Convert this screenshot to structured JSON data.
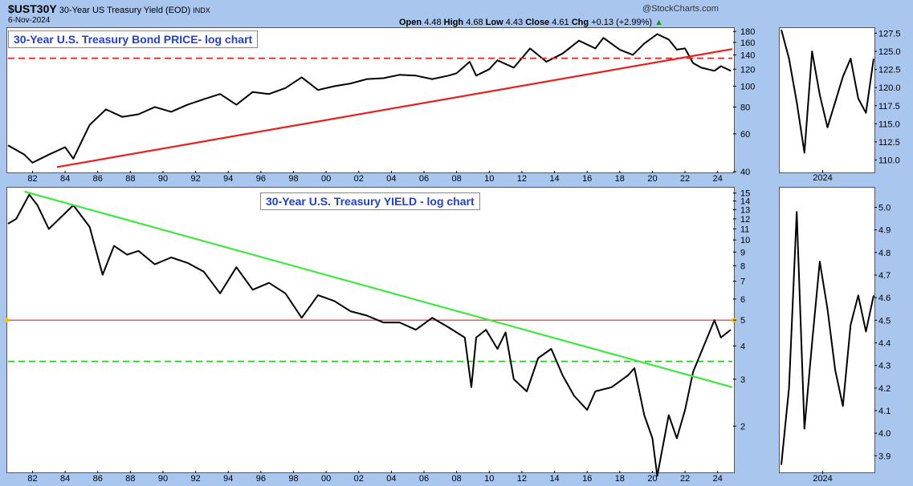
{
  "header": {
    "symbol": "$UST30Y",
    "name": "30-Year US Treasury Yield (EOD)",
    "exchange": "INDX",
    "date": "6-Nov-2024",
    "source": "@StockCharts.com",
    "ohlc": {
      "open_label": "Open",
      "open": "4.48",
      "high_label": "High",
      "high": "4.68",
      "low_label": "Low",
      "low": "4.43",
      "close_label": "Close",
      "close": "4.61",
      "chg_label": "Chg",
      "chg": "+0.13 (+2.99%)"
    }
  },
  "colors": {
    "price": "#000000",
    "price_trend": "#e8201e",
    "price_ref": "#e8201e",
    "yield_trend": "#3ee83e",
    "yield_ref_solid": "#e8201e",
    "yield_ref_dash": "#22cc22",
    "background": "#a9c6ef"
  },
  "chart_data": [
    {
      "type": "line",
      "title": "30-Year U.S. Treasury Bond PRICE- log chart",
      "yscale": "log",
      "ylim": [
        40,
        185
      ],
      "xlim": [
        1980.5,
        2024.9
      ],
      "yticks": [
        40,
        60,
        80,
        100,
        120,
        140,
        160,
        180
      ],
      "xtick_labels": [
        "82",
        "84",
        "86",
        "88",
        "90",
        "92",
        "94",
        "96",
        "98",
        "00",
        "02",
        "04",
        "06",
        "08",
        "10",
        "12",
        "14",
        "16",
        "18",
        "20",
        "22",
        "24"
      ],
      "series": [
        {
          "x": [
            1980.5,
            1981.5,
            1982.0,
            1983.0,
            1984.0,
            1984.5,
            1985.5,
            1986.5,
            1987.5,
            1988.5,
            1989.5,
            1990.5,
            1991.5,
            1992.5,
            1993.5,
            1994.5,
            1995.5,
            1996.5,
            1997.5,
            1998.5,
            1999.5,
            2000.5,
            2001.5,
            2002.5,
            2003.5,
            2004.5,
            2005.5,
            2006.5,
            2007.5,
            2008.0,
            2008.8,
            2009.2,
            2010.0,
            2010.5,
            2011.5,
            2012.5,
            2013.5,
            2014.5,
            2015.5,
            2016.5,
            2017.0,
            2018.0,
            2018.8,
            2019.5,
            2020.3,
            2021.0,
            2021.5,
            2022.0,
            2022.5,
            2023.0,
            2023.8,
            2024.2,
            2024.8
          ],
          "values": [
            53,
            48,
            44,
            48,
            52,
            46,
            66,
            78,
            72,
            74,
            80,
            76,
            82,
            87,
            92,
            82,
            94,
            92,
            98,
            110,
            96,
            100,
            103,
            108,
            109,
            113,
            112,
            108,
            112,
            115,
            130,
            112,
            120,
            132,
            122,
            150,
            130,
            142,
            163,
            150,
            168,
            148,
            140,
            158,
            175,
            165,
            148,
            150,
            128,
            122,
            118,
            124,
            118
          ]
        }
      ],
      "trendline": {
        "x": [
          1983.5,
          2024.9
        ],
        "values": [
          42,
          149
        ]
      },
      "ref_line": {
        "value": 135,
        "style": "dashed"
      }
    },
    {
      "type": "line",
      "title": "30-Year U.S. Treasury YIELD - log chart",
      "yscale": "log",
      "ylim": [
        1.35,
        15.5
      ],
      "xlim": [
        1980.5,
        2024.9
      ],
      "yticks": [
        2,
        3,
        4,
        5,
        6,
        7,
        8,
        9,
        10,
        11,
        12,
        13,
        14,
        15
      ],
      "xtick_labels": [
        "82",
        "84",
        "86",
        "88",
        "90",
        "92",
        "94",
        "96",
        "98",
        "00",
        "02",
        "04",
        "06",
        "08",
        "10",
        "12",
        "14",
        "16",
        "18",
        "20",
        "22",
        "24"
      ],
      "series": [
        {
          "x": [
            1980.5,
            1981.0,
            1981.8,
            1982.3,
            1983.0,
            1984.5,
            1985.5,
            1986.3,
            1987.0,
            1987.8,
            1988.5,
            1989.5,
            1990.5,
            1991.5,
            1992.5,
            1993.5,
            1994.5,
            1995.5,
            1996.5,
            1997.5,
            1998.5,
            1999.5,
            2000.5,
            2001.5,
            2002.5,
            2003.5,
            2004.5,
            2005.5,
            2006.5,
            2007.5,
            2008.5,
            2008.9,
            2009.2,
            2009.8,
            2010.5,
            2011.0,
            2011.5,
            2012.3,
            2013.0,
            2013.8,
            2014.5,
            2015.2,
            2016.0,
            2016.5,
            2017.5,
            2018.5,
            2018.9,
            2019.5,
            2020.0,
            2020.3,
            2021.0,
            2021.5,
            2022.0,
            2022.5,
            2023.0,
            2023.8,
            2024.2,
            2024.8
          ],
          "values": [
            11.5,
            12.0,
            14.8,
            13.5,
            11.0,
            13.5,
            11.2,
            7.4,
            9.5,
            8.8,
            9.1,
            8.1,
            8.6,
            8.2,
            7.6,
            6.3,
            7.9,
            6.5,
            6.9,
            6.3,
            5.1,
            6.2,
            5.9,
            5.4,
            5.2,
            4.9,
            4.9,
            4.6,
            5.1,
            4.7,
            4.3,
            2.8,
            4.3,
            4.6,
            3.9,
            4.5,
            3.0,
            2.7,
            3.6,
            3.9,
            3.1,
            2.6,
            2.3,
            2.7,
            2.8,
            3.1,
            3.3,
            2.2,
            1.8,
            1.3,
            2.2,
            1.8,
            2.3,
            3.2,
            3.8,
            5.0,
            4.3,
            4.6
          ]
        }
      ],
      "trendline": {
        "x": [
          1981.5,
          2024.9
        ],
        "values": [
          15.2,
          2.8
        ]
      },
      "ref_line_solid": {
        "value": 5.0
      },
      "ref_line_dashed": {
        "value": 3.5
      }
    },
    {
      "type": "line",
      "ylim": [
        108.5,
        128
      ],
      "yticks": [
        "110.0",
        "112.5",
        "115.0",
        "117.5",
        "120.0",
        "122.5",
        "125.0",
        "127.5"
      ],
      "xtick_labels": [
        "2024"
      ],
      "series": [
        {
          "x": [
            0,
            1,
            2,
            3,
            4,
            5,
            6,
            7,
            8,
            9,
            10,
            11,
            12
          ],
          "values": [
            128,
            124,
            118,
            111,
            125,
            119,
            114.5,
            118,
            121.5,
            124,
            118.5,
            116.5,
            124
          ]
        }
      ]
    },
    {
      "type": "line",
      "ylim": [
        3.83,
        5.08
      ],
      "yticks": [
        "3.9",
        "4.0",
        "4.1",
        "4.2",
        "4.3",
        "4.4",
        "4.5",
        "4.6",
        "4.7",
        "4.8",
        "4.9",
        "5.0"
      ],
      "xtick_labels": [
        "2024"
      ],
      "series": [
        {
          "x": [
            0,
            1,
            2,
            3,
            4,
            5,
            6,
            7,
            8,
            9,
            10,
            11,
            12
          ],
          "values": [
            3.86,
            4.2,
            4.98,
            4.02,
            4.4,
            4.76,
            4.55,
            4.28,
            4.12,
            4.48,
            4.61,
            4.45,
            4.61
          ]
        }
      ]
    }
  ]
}
